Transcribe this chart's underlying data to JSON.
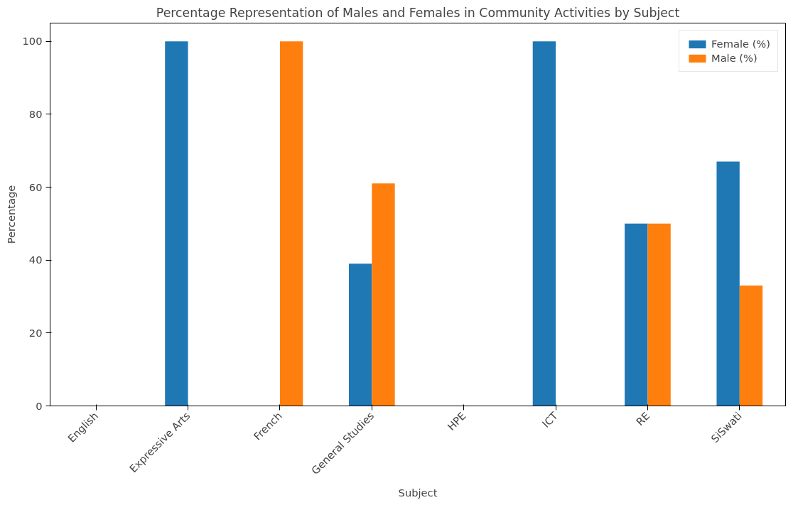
{
  "chart_data": {
    "type": "bar",
    "title": "Percentage Representation of Males and Females in Community Activities by Subject",
    "xlabel": "Subject",
    "ylabel": "Percentage",
    "categories": [
      "English",
      "Expressive Arts",
      "French",
      "General Studies",
      "HPE",
      "ICT",
      "RE",
      "SiSwati"
    ],
    "series": [
      {
        "name": "Female (%)",
        "color": "#1f77b4",
        "values": [
          0,
          100,
          0,
          39,
          0,
          100,
          50,
          67
        ]
      },
      {
        "name": "Male (%)",
        "color": "#ff7f0e",
        "values": [
          0,
          0,
          100,
          61,
          0,
          0,
          50,
          33
        ]
      }
    ],
    "ylim": [
      0,
      105
    ],
    "yticks": [
      0,
      20,
      40,
      60,
      80,
      100
    ],
    "grid": false,
    "legend": "top right"
  }
}
